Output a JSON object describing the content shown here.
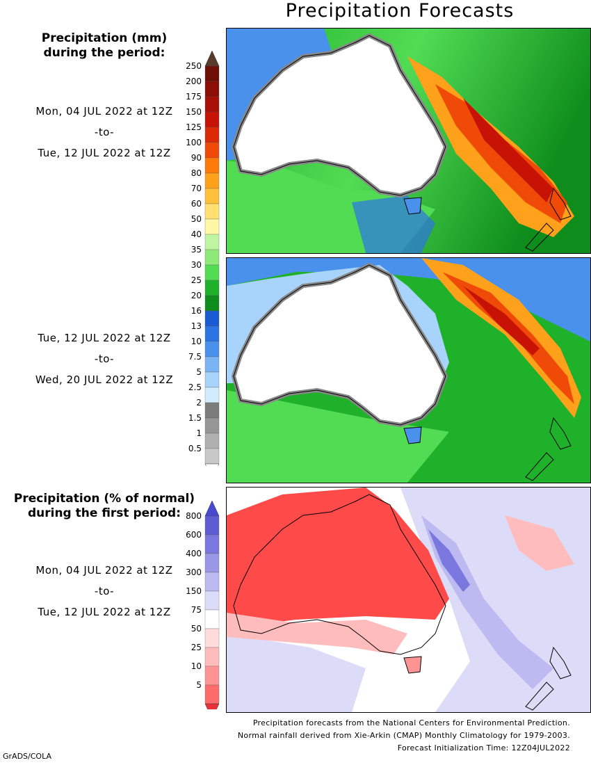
{
  "title": "Precipitation Forecasts",
  "left_column": {
    "precip_header": [
      "Precipitation (mm)",
      "during the period:"
    ],
    "period1": [
      "Mon, 04 JUL 2022 at 12Z",
      "-to-",
      "Tue, 12 JUL 2022 at 12Z"
    ],
    "period2": [
      "Tue, 12 JUL 2022 at 12Z",
      "-to-",
      "Wed, 20 JUL 2022 at 12Z"
    ],
    "pct_header": [
      "Precipitation (% of normal)",
      "during the first period:"
    ],
    "period3": [
      "Mon, 04 JUL 2022 at 12Z",
      "-to-",
      "Tue, 12 JUL 2022 at 12Z"
    ]
  },
  "precip_legend": {
    "labels": [
      "250",
      "200",
      "175",
      "150",
      "125",
      "100",
      "90",
      "80",
      "70",
      "60",
      "50",
      "40",
      "35",
      "30",
      "25",
      "20",
      "16",
      "13",
      "10",
      "7.5",
      "5",
      "2.5",
      "2",
      "1.5",
      "1",
      "0.5"
    ],
    "colors": [
      "#6e0e06",
      "#8c0f06",
      "#a80f06",
      "#c71206",
      "#dc2a07",
      "#f04a08",
      "#ff7a08",
      "#ffa11a",
      "#ffc03c",
      "#ffe070",
      "#fff7a5",
      "#bff5a0",
      "#8fe87a",
      "#52dc54",
      "#1fb12a",
      "#0f8d1c",
      "#1a5ad2",
      "#2c74e4",
      "#4a91ec",
      "#7bb4f4",
      "#a8d3fa",
      "#d0ecfd",
      "#7c7c7c",
      "#969696",
      "#b0b0b0",
      "#c8c8c8"
    ],
    "top_cap": "#5a3a2a"
  },
  "pct_legend": {
    "labels": [
      "800",
      "600",
      "400",
      "300",
      "150",
      "75",
      "50",
      "25",
      "10",
      "5"
    ],
    "colors": [
      "#5d5ad2",
      "#7a78de",
      "#9a98e6",
      "#bcbaf0",
      "#dcdcf8",
      "#ffffff",
      "#ffdcdc",
      "#ffbcbc",
      "#ff9494",
      "#ff6a6a"
    ],
    "top_cap": "#4848d0",
    "bottom_cap": "#e8323a"
  },
  "footer": [
    "Precipitation forecasts from the National Centers for Environmental Prediction.",
    "Normal rainfall derived from Xie-Arkin (CMAP) Monthly Climatology for 1979-2003.",
    "Forecast Initialization Time: 12Z04JUL2022"
  ],
  "credit": "GrADS/COLA"
}
